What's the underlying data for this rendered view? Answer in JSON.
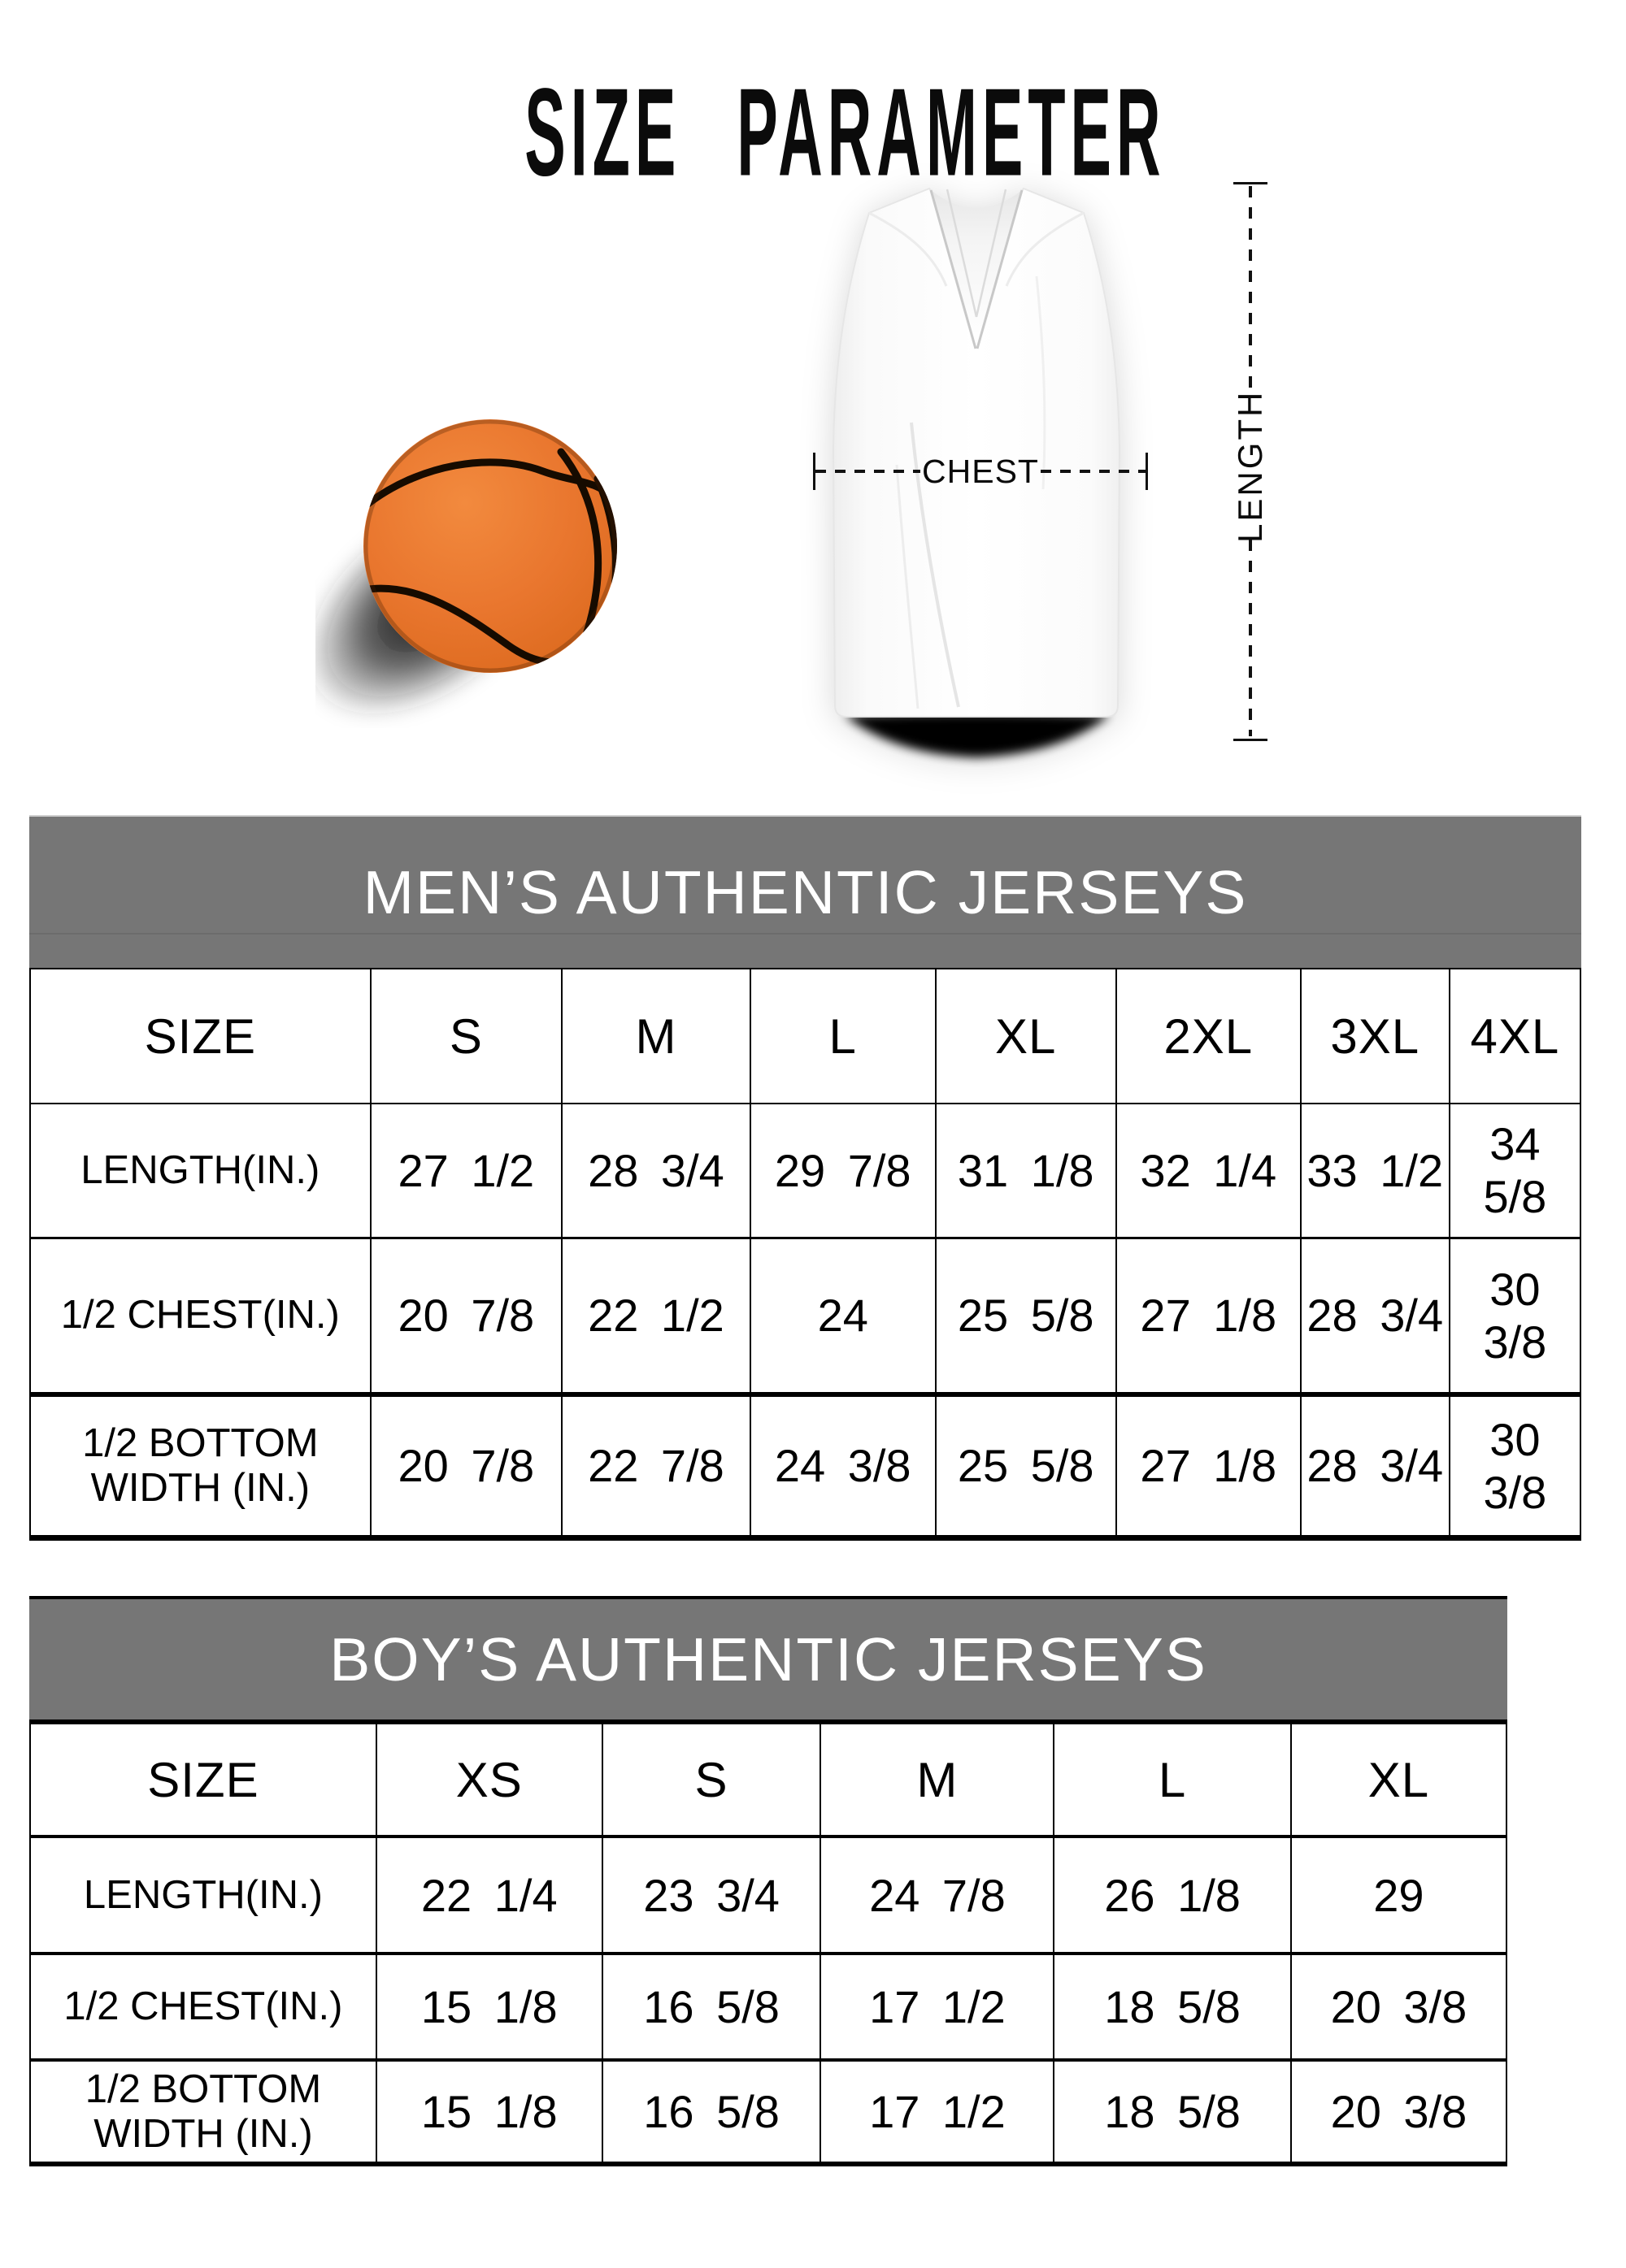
{
  "title": "SIZE PARAMETER",
  "diagram": {
    "chest_label": "CHEST",
    "length_label": "LENGTH",
    "illustrations": [
      "basketball",
      "white v-neck basketball jersey"
    ]
  },
  "colors": {
    "banner_gray": "#767676",
    "banner_text": "#ffffff",
    "table_line": "#000000",
    "ball_orange": "#e8742f",
    "ball_seam": "#160b00"
  },
  "mens_table": {
    "banner": "MEN’S AUTHENTIC JERSEYS",
    "columns": [
      "SIZE",
      "S",
      "M",
      "L",
      "XL",
      "2XL",
      "3XL",
      "4XL"
    ],
    "rows": [
      {
        "label_lines": [
          "LENGTH(IN.)"
        ],
        "values": [
          "27 1/2",
          "28 3/4",
          "29 7/8",
          "31 1/8",
          "32 1/4",
          "33 1/2",
          "34 5/8"
        ]
      },
      {
        "label_lines": [
          "1/2 CHEST(IN.)"
        ],
        "values": [
          "20 7/8",
          "22 1/2",
          "24",
          "25 5/8",
          "27 1/8",
          "28 3/4",
          "30 3/8"
        ]
      },
      {
        "label_lines": [
          "1/2 BOTTOM",
          "WIDTH (IN.)"
        ],
        "values": [
          "20 7/8",
          "22 7/8",
          "24 3/8",
          "25 5/8",
          "27 1/8",
          "28 3/4",
          "30 3/8"
        ]
      }
    ]
  },
  "boys_table": {
    "banner": "BOY’S AUTHENTIC JERSEYS",
    "columns": [
      "SIZE",
      "XS",
      "S",
      "M",
      "L",
      "XL"
    ],
    "rows": [
      {
        "label_lines": [
          "LENGTH(IN.)"
        ],
        "values": [
          "22 1/4",
          "23 3/4",
          "24 7/8",
          "26 1/8",
          "29"
        ]
      },
      {
        "label_lines": [
          "1/2 CHEST(IN.)"
        ],
        "values": [
          "15 1/8",
          "16 5/8",
          "17 1/2",
          "18 5/8",
          "20 3/8"
        ]
      },
      {
        "label_lines": [
          "1/2 BOTTOM",
          "WIDTH (IN.)"
        ],
        "values": [
          "15 1/8",
          "16 5/8",
          "17 1/2",
          "18 5/8",
          "20 3/8"
        ]
      }
    ]
  }
}
